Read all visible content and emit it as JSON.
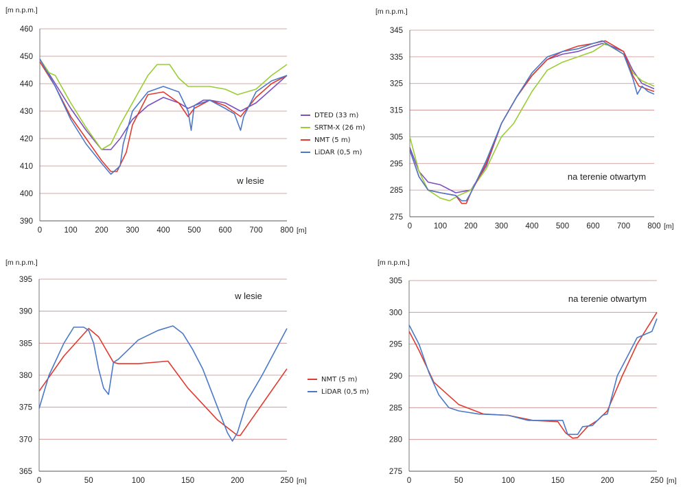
{
  "colors": {
    "dted": "#7a4fbf",
    "srtm": "#9acd32",
    "nmt": "#e03a2e",
    "lidar": "#4a78c8",
    "grid": "#c98a8a"
  },
  "chart_data": [
    {
      "type": "line",
      "ylabel": "[m n.p.m.]",
      "xunit": "[m]",
      "annotation": "w lesie",
      "xlim": [
        0,
        800
      ],
      "ylim": [
        390,
        460
      ],
      "xticks": [
        0,
        100,
        200,
        300,
        400,
        500,
        600,
        700,
        800
      ],
      "yticks": [
        390,
        400,
        410,
        420,
        430,
        440,
        450,
        460
      ],
      "series": [
        {
          "name": "DTED (33 m)",
          "color": "#7a4fbf",
          "x": [
            0,
            50,
            100,
            150,
            200,
            230,
            260,
            300,
            350,
            400,
            450,
            480,
            500,
            530,
            550,
            600,
            650,
            700,
            750,
            800
          ],
          "y": [
            449,
            440,
            431,
            423,
            416,
            416,
            420,
            427,
            432,
            435,
            433,
            431,
            432,
            434,
            434,
            433,
            430,
            433,
            438,
            443
          ]
        },
        {
          "name": "SRTM-X (26 m)",
          "color": "#9acd32",
          "x": [
            0,
            30,
            50,
            100,
            150,
            200,
            230,
            260,
            300,
            350,
            380,
            420,
            450,
            480,
            500,
            550,
            600,
            640,
            670,
            700,
            750,
            800
          ],
          "y": [
            449,
            444,
            443,
            433,
            424,
            416,
            418,
            425,
            433,
            443,
            447,
            447,
            442,
            439,
            439,
            439,
            438,
            436,
            437,
            438,
            443,
            447
          ]
        },
        {
          "name": "NMT (5 m)",
          "color": "#e03a2e",
          "x": [
            0,
            50,
            100,
            150,
            200,
            230,
            250,
            280,
            300,
            350,
            400,
            450,
            480,
            500,
            550,
            600,
            650,
            700,
            750,
            800
          ],
          "y": [
            448,
            439,
            428,
            420,
            412,
            408,
            408,
            415,
            425,
            436,
            437,
            433,
            428,
            431,
            434,
            432,
            428,
            435,
            440,
            443
          ]
        },
        {
          "name": "LiDAR (0,5 m)",
          "color": "#4a78c8",
          "x": [
            0,
            50,
            100,
            150,
            200,
            230,
            260,
            270,
            300,
            350,
            400,
            450,
            480,
            490,
            500,
            550,
            600,
            630,
            650,
            660,
            700,
            750,
            800
          ],
          "y": [
            449,
            439,
            427,
            418,
            411,
            407,
            410,
            418,
            430,
            437,
            439,
            437,
            430,
            423,
            432,
            434,
            431,
            429,
            423,
            428,
            437,
            441,
            443
          ]
        }
      ]
    },
    {
      "type": "line",
      "ylabel": "[m n.p.m.]",
      "xunit": "[m]",
      "annotation": "na terenie otwartym",
      "xlim": [
        0,
        800
      ],
      "ylim": [
        275,
        345
      ],
      "xticks": [
        0,
        100,
        200,
        300,
        400,
        500,
        600,
        700,
        800
      ],
      "yticks": [
        275,
        285,
        295,
        305,
        315,
        325,
        335,
        345
      ],
      "series": [
        {
          "name": "DTED (33 m)",
          "color": "#7a4fbf",
          "x": [
            0,
            30,
            60,
            100,
            150,
            200,
            250,
            300,
            350,
            400,
            450,
            500,
            550,
            600,
            630,
            660,
            700,
            730,
            760,
            800
          ],
          "y": [
            301,
            292,
            288,
            287,
            284,
            285,
            294,
            310,
            320,
            328,
            334,
            336,
            337,
            339,
            340,
            339,
            337,
            330,
            325,
            323
          ]
        },
        {
          "name": "SRTM-X (26 m)",
          "color": "#9acd32",
          "x": [
            0,
            30,
            60,
            100,
            130,
            160,
            200,
            250,
            300,
            340,
            400,
            450,
            500,
            550,
            600,
            640,
            700,
            730,
            760,
            800
          ],
          "y": [
            305,
            292,
            285,
            282,
            281,
            283,
            285,
            293,
            305,
            310,
            322,
            330,
            333,
            335,
            337,
            340,
            336,
            329,
            326,
            324
          ]
        },
        {
          "name": "NMT (5 m)",
          "color": "#e03a2e",
          "x": [
            0,
            30,
            60,
            100,
            150,
            170,
            185,
            200,
            250,
            300,
            350,
            400,
            450,
            500,
            550,
            600,
            640,
            700,
            730,
            750,
            800
          ],
          "y": [
            300,
            290,
            285,
            284,
            283,
            280,
            280,
            284,
            295,
            310,
            320,
            328,
            334,
            337,
            339,
            340,
            341,
            337,
            328,
            324,
            322
          ]
        },
        {
          "name": "LiDAR (0,5 m)",
          "color": "#4a78c8",
          "x": [
            0,
            30,
            60,
            100,
            150,
            170,
            185,
            200,
            250,
            300,
            350,
            400,
            450,
            500,
            550,
            600,
            630,
            700,
            730,
            745,
            760,
            780,
            800
          ],
          "y": [
            300,
            290,
            285,
            284,
            283,
            281,
            281,
            284,
            296,
            310,
            320,
            329,
            335,
            337,
            338,
            340,
            341,
            336,
            327,
            321,
            324,
            322,
            321
          ]
        }
      ]
    },
    {
      "type": "line",
      "ylabel": "[m n.p.m.]",
      "xunit": "[m]",
      "annotation": "w lesie",
      "xlim": [
        0,
        250
      ],
      "ylim": [
        365,
        395
      ],
      "xticks": [
        0,
        50,
        100,
        150,
        200,
        250
      ],
      "yticks": [
        365,
        370,
        375,
        380,
        385,
        390,
        395
      ],
      "series": [
        {
          "name": "NMT  (5 m)",
          "color": "#e03a2e",
          "x": [
            0,
            25,
            50,
            60,
            75,
            80,
            100,
            130,
            150,
            180,
            200,
            203,
            250
          ],
          "y": [
            377.5,
            383,
            387.3,
            386,
            382,
            381.8,
            381.8,
            382.2,
            378,
            373,
            370.6,
            370.6,
            381
          ]
        },
        {
          "name": "LiDAR (0,5 m)",
          "color": "#4a78c8",
          "x": [
            0,
            10,
            25,
            35,
            45,
            50,
            55,
            60,
            65,
            70,
            75,
            80,
            90,
            100,
            120,
            135,
            145,
            155,
            165,
            180,
            190,
            195,
            200,
            210,
            225,
            250
          ],
          "y": [
            374.8,
            380,
            385,
            387.5,
            387.5,
            387,
            385,
            381,
            378,
            377,
            382,
            382.5,
            384,
            385.5,
            387,
            387.7,
            386.5,
            384,
            381,
            375,
            371,
            369.7,
            371,
            376,
            380,
            387.3
          ]
        }
      ]
    },
    {
      "type": "line",
      "ylabel": "[m n.p.m.]",
      "xunit": "[m]",
      "annotation": "na terenie otwartym",
      "xlim": [
        0,
        250
      ],
      "ylim": [
        275,
        305
      ],
      "xticks": [
        0,
        50,
        100,
        150,
        200,
        250
      ],
      "yticks": [
        275,
        280,
        285,
        290,
        295,
        300,
        305
      ],
      "series": [
        {
          "name": "NMT  (5 m)",
          "color": "#e03a2e",
          "x": [
            0,
            10,
            25,
            50,
            75,
            100,
            125,
            150,
            158,
            165,
            170,
            180,
            190,
            200,
            215,
            230,
            250
          ],
          "y": [
            297,
            294,
            289,
            285.5,
            284,
            283.8,
            283,
            282.8,
            281,
            280.2,
            280.3,
            282,
            283,
            284.5,
            290,
            295,
            300
          ]
        },
        {
          "name": "LiDAR (0,5 m)",
          "color": "#4a78c8",
          "x": [
            0,
            10,
            20,
            30,
            40,
            50,
            70,
            100,
            120,
            140,
            155,
            160,
            170,
            175,
            185,
            195,
            200,
            210,
            220,
            230,
            245,
            250
          ],
          "y": [
            298,
            295,
            290.5,
            287,
            285,
            284.5,
            284,
            283.8,
            283,
            283,
            283,
            280.8,
            280.8,
            282,
            282.2,
            283.8,
            284,
            290,
            293,
            296,
            297,
            299
          ]
        }
      ]
    }
  ]
}
